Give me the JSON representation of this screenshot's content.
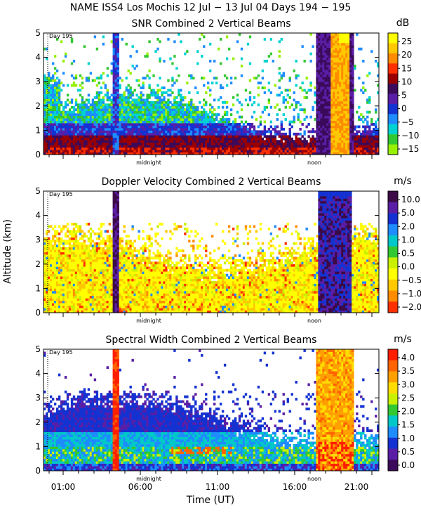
{
  "chart_data": [
    {
      "type": "heatmap",
      "figure_title": "NAME ISS4 Los Mochis  12 Jul − 13 Jul 04 Days 194 − 195",
      "title": "SNR Combined 2 Vertical Beams",
      "unit": "dB",
      "ylim": [
        0,
        5
      ],
      "yticks": [
        "0",
        "1",
        "2",
        "3",
        "4",
        "5"
      ],
      "colorbar": {
        "labels": [
          "25",
          "20",
          "15",
          "10",
          "5",
          "0",
          "−5",
          "−10",
          "−15"
        ],
        "colors": [
          "#ffff00",
          "#ffc800",
          "#ff8c00",
          "#ff3000",
          "#9b0000",
          "#3c0a5a",
          "#5a1ea6",
          "#1432d2",
          "#1e8cff",
          "#00d2d2",
          "#32c832",
          "#96f000"
        ]
      },
      "annotations": [
        "Day 195",
        "midnight",
        "noon"
      ]
    },
    {
      "type": "heatmap",
      "title": "Doppler Velocity Combined 2 Vertical Beams",
      "unit": "m/s",
      "ylabel": "Altitude (km)",
      "ylim": [
        0,
        5
      ],
      "yticks": [
        "0",
        "1",
        "2",
        "3",
        "4",
        "5"
      ],
      "colorbar": {
        "labels": [
          "10.0",
          "5.0",
          "2.0",
          "1.0",
          "0.5",
          "0.0",
          "−0.5",
          "−1.0",
          "−2.0"
        ],
        "colors": [
          "#3c0a46",
          "#5a1ea6",
          "#1432d2",
          "#1e8cff",
          "#00c8c8",
          "#32c832",
          "#c8f000",
          "#ffff00",
          "#ffc800",
          "#ff8c00",
          "#ff3000"
        ]
      },
      "annotations": [
        "Day 195",
        "midnight",
        "noon"
      ]
    },
    {
      "type": "heatmap",
      "title": "Spectral Width Combined 2 Vertical Beams",
      "unit": "m/s",
      "xlabel": "Time (UT)",
      "xticks": [
        "01:00",
        "06:00",
        "11:00",
        "16:00",
        "21:00"
      ],
      "ylim": [
        0,
        5
      ],
      "yticks": [
        "0",
        "1",
        "2",
        "3",
        "4",
        "5"
      ],
      "colorbar": {
        "labels": [
          "4.0",
          "3.5",
          "3.0",
          "2.5",
          "2.0",
          "1.5",
          "1.0",
          "0.5",
          "0.0"
        ],
        "colors": [
          "#ff1e00",
          "#ff6400",
          "#ffa000",
          "#ffdc00",
          "#c8f000",
          "#32c832",
          "#00c8c8",
          "#1e8cff",
          "#1432d2",
          "#5a1ea6",
          "#3c0a5a"
        ]
      },
      "annotations": [
        "Day 195",
        "midnight",
        "noon"
      ]
    }
  ]
}
